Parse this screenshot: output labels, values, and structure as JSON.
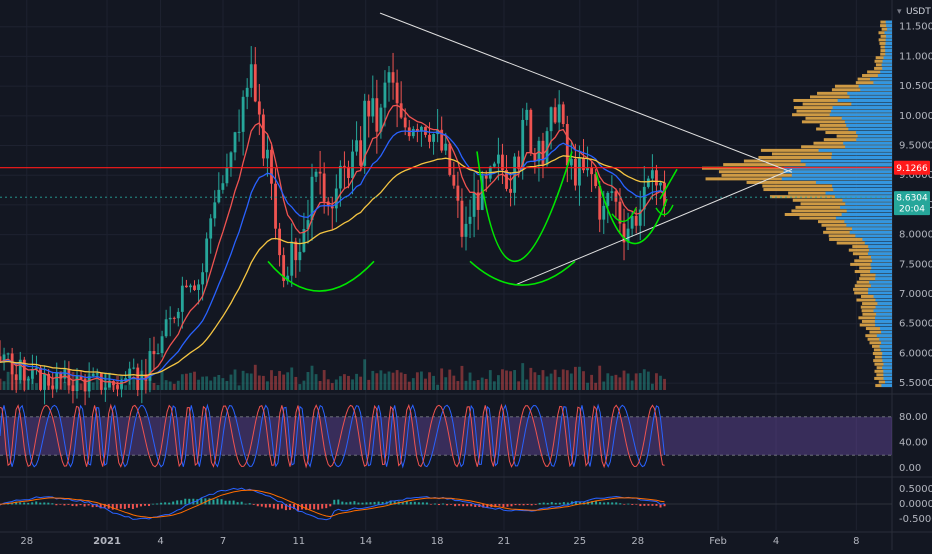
{
  "currency": "USDT",
  "colors": {
    "background": "#131722",
    "up": "#26a69a",
    "down": "#ef5350",
    "ema_fast": "#ef5350",
    "ema_mid": "#2962ff",
    "ema_slow": "#f5c542",
    "pattern": "#00e600",
    "trendline": "#e0e0e0",
    "hline": "#ff1a1a",
    "stoch_band": "#7e57c2",
    "stoch_k": "#2962ff",
    "stoch_d": "#ef5350",
    "macd": "#2962ff",
    "signal": "#ff6d00",
    "vp_up": "#2196f3",
    "vp_down": "#f0b14a"
  },
  "price_labels": {
    "current": "9.1266",
    "last": "8.6304",
    "countdown": "20:04"
  },
  "x_ticks": [
    "28",
    "2021",
    "4",
    "7",
    "11",
    "14",
    "18",
    "21",
    "25",
    "28",
    "Feb",
    "4",
    "8"
  ],
  "stoch_ticks": [
    "80.00",
    "40.00",
    "0.00"
  ],
  "macd_ticks": [
    "0.5000",
    "0.0000",
    "-0.5000"
  ],
  "chart_data": {
    "type": "candlestick",
    "y_axis": {
      "ticks": [
        "11.5000",
        "11.0000",
        "10.5000",
        "10.0000",
        "9.5000",
        "9.0000",
        "8.5000",
        "8.0000",
        "7.5000",
        "7.0000",
        "6.5000",
        "6.0000",
        "5.5000"
      ],
      "range": [
        5.35,
        11.95
      ]
    },
    "price_path_x": [
      0,
      0.03,
      0.08,
      0.13,
      0.16,
      0.19,
      0.21,
      0.225,
      0.24,
      0.255,
      0.265,
      0.28,
      0.29,
      0.305,
      0.315,
      0.335,
      0.35,
      0.375,
      0.39,
      0.405,
      0.41,
      0.425,
      0.435,
      0.45,
      0.465,
      0.48,
      0.49,
      0.5,
      0.51,
      0.52,
      0.53,
      0.545,
      0.56,
      0.575,
      0.59,
      0.6,
      0.61,
      0.625,
      0.635,
      0.645,
      0.655,
      0.665,
      0.675,
      0.685,
      0.7,
      0.715,
      0.735,
      0.745
    ],
    "price_path_y": [
      5.95,
      5.6,
      5.55,
      5.5,
      5.6,
      6.5,
      7.4,
      7.2,
      8.7,
      9.0,
      9.7,
      10.7,
      9.8,
      8.9,
      7.4,
      7.8,
      8.8,
      8.7,
      9.2,
      9.4,
      10.3,
      9.8,
      10.8,
      9.8,
      10.0,
      9.9,
      9.6,
      9.3,
      8.7,
      7.9,
      8.6,
      8.8,
      9.2,
      8.9,
      10.0,
      9.3,
      9.3,
      10.4,
      9.2,
      9.1,
      9.0,
      9.0,
      8.3,
      8.8,
      8.1,
      8.4,
      8.9,
      8.63
    ],
    "current_price": 9.1266,
    "last_price": 8.6304
  }
}
